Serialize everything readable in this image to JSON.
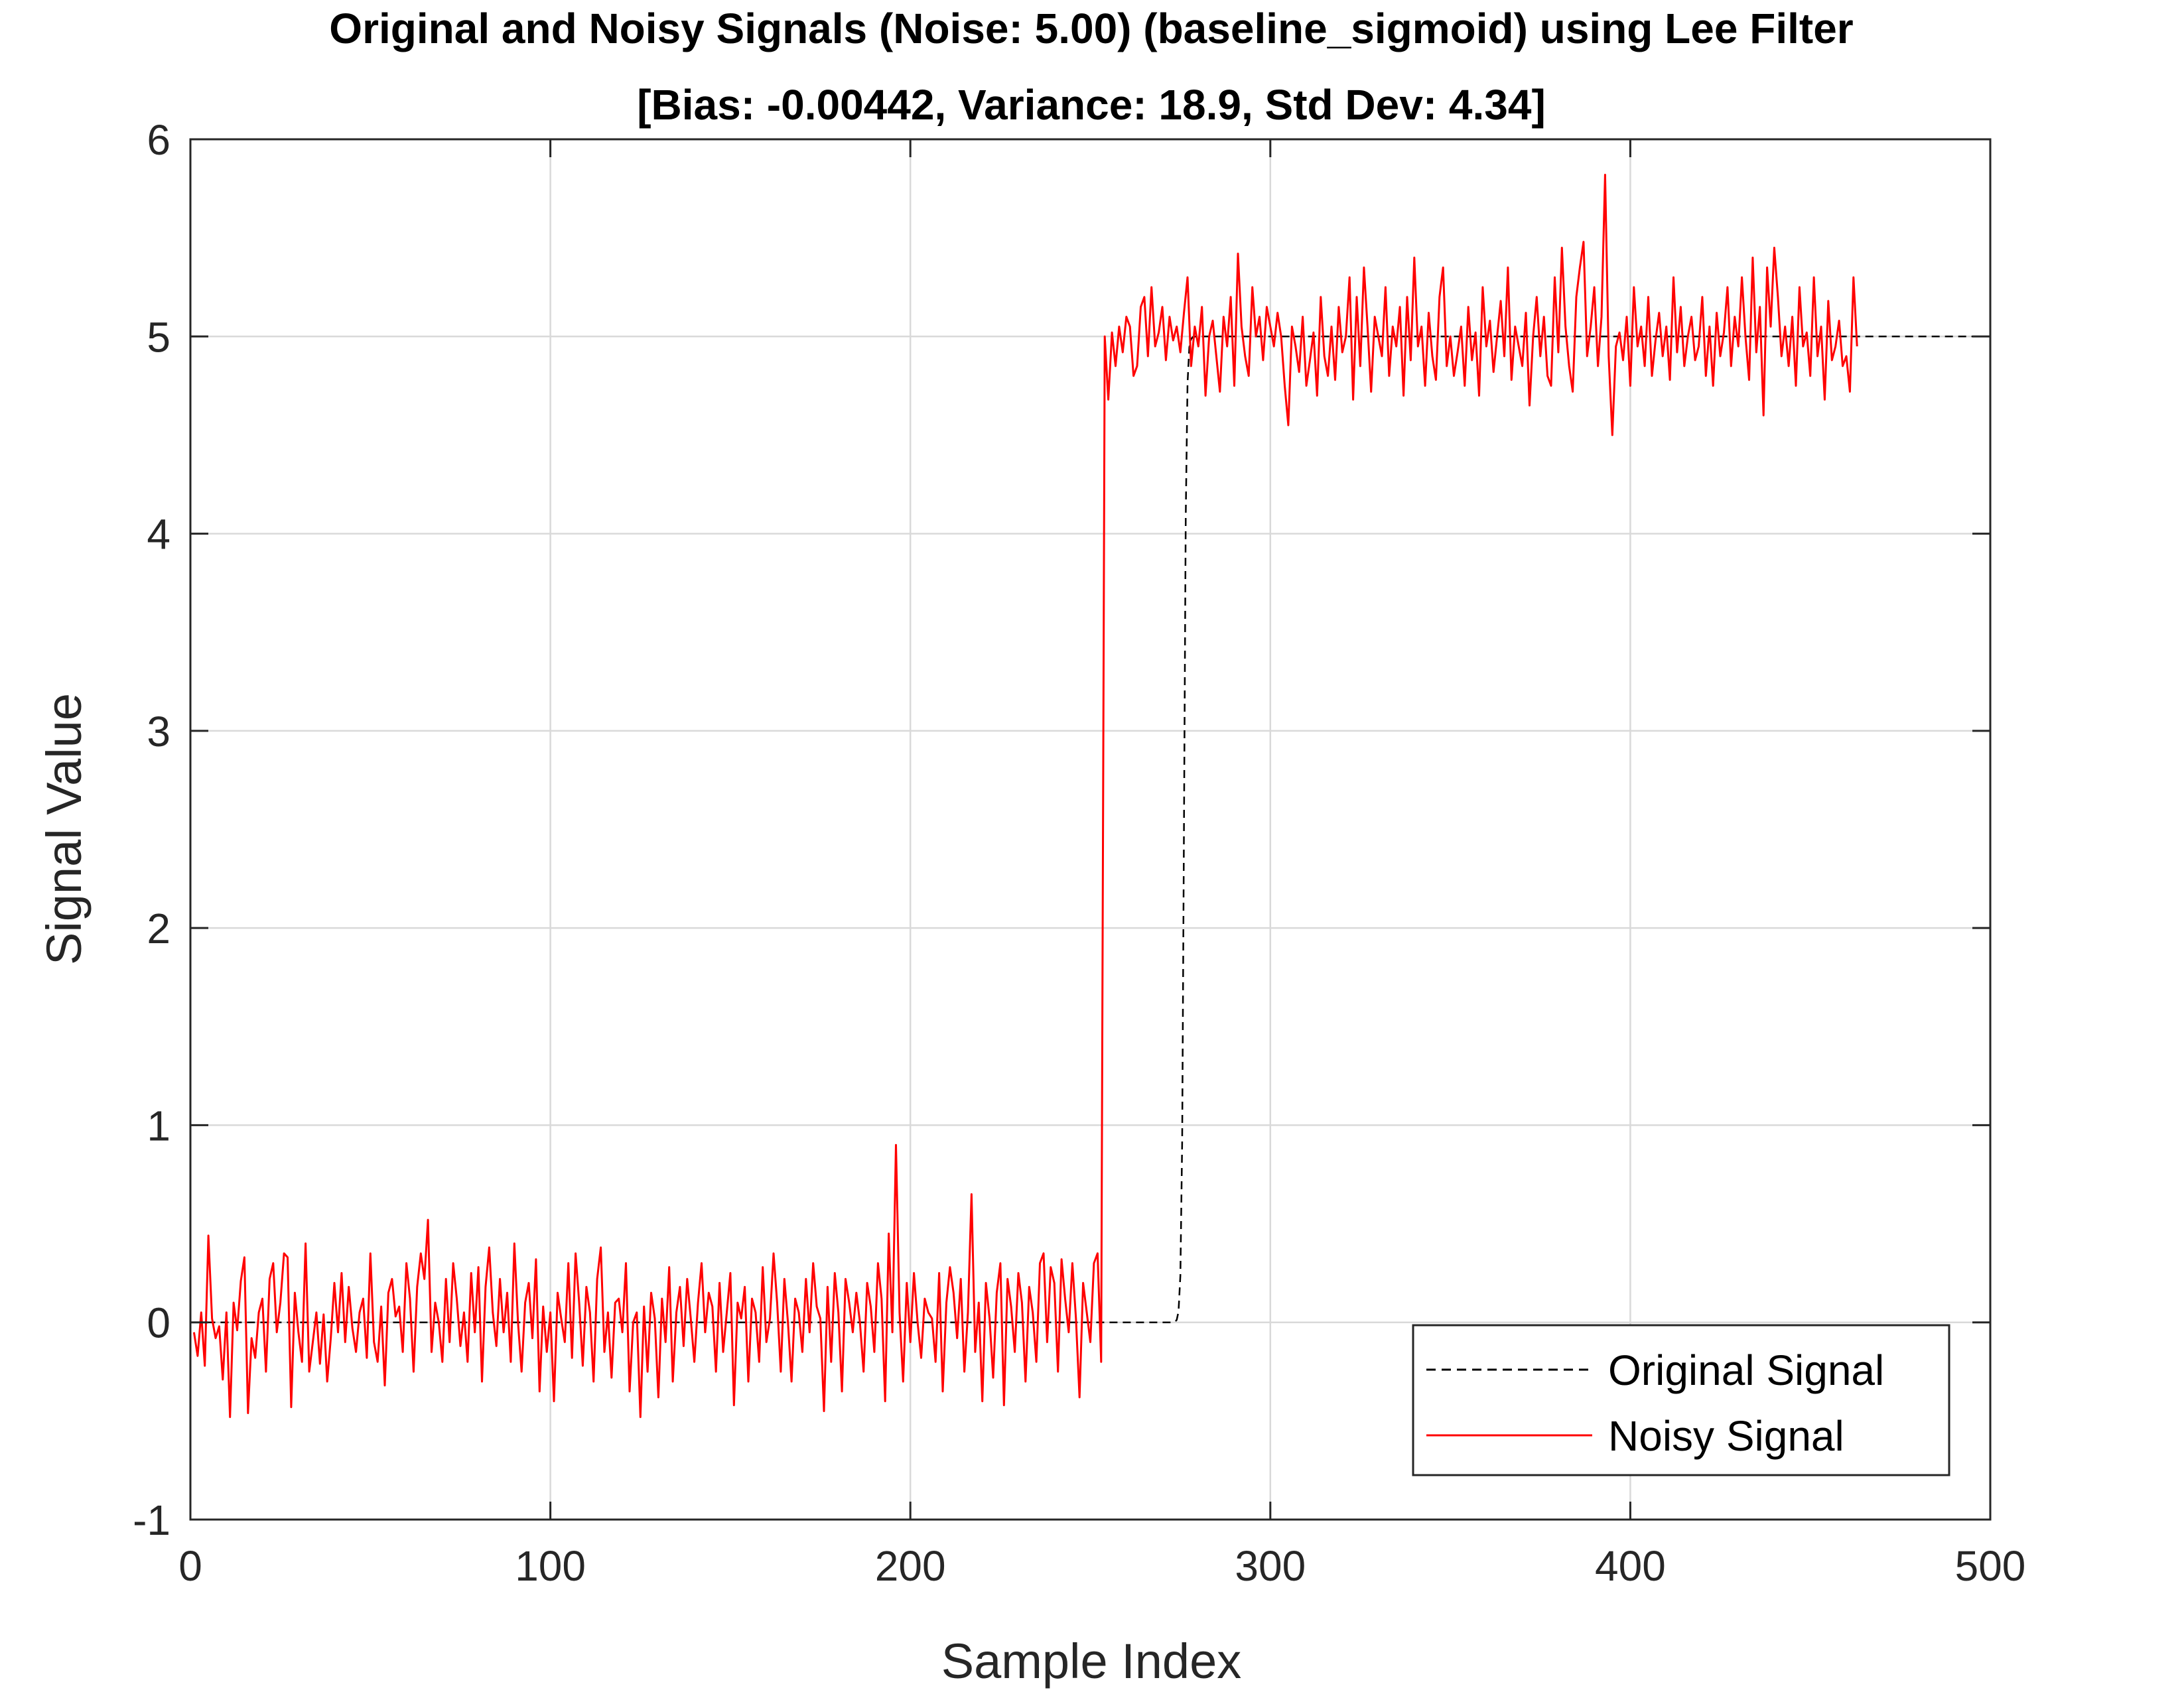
{
  "chart_data": {
    "type": "line",
    "title": "Original and Noisy Signals (Noise: 5.00) (baseline_sigmoid) using Lee Filter",
    "subtitle": "[Bias: -0.00442, Variance: 18.9, Std Dev: 4.34]",
    "xlabel": "Sample Index",
    "ylabel": "Signal Value",
    "xlim": [
      0,
      500
    ],
    "ylim": [
      -1,
      6
    ],
    "xticks": [
      0,
      100,
      200,
      300,
      400,
      500
    ],
    "xtick_labels": [
      "0",
      "100",
      "200",
      "300",
      "400",
      "500"
    ],
    "yticks": [
      -1,
      0,
      1,
      2,
      3,
      4,
      5,
      6
    ],
    "ytick_labels": [
      "-1",
      "0",
      "1",
      "2",
      "3",
      "4",
      "5",
      "6"
    ],
    "grid": true,
    "legend_position": "bottom-right",
    "series": [
      {
        "name": "Original Signal",
        "color": "#000000",
        "style": "dashed",
        "model": "sigmoid",
        "low": 0,
        "high": 5,
        "midpoint": 276,
        "steepness": 3,
        "x_start": 1,
        "x_end": 500
      },
      {
        "name": "Noisy Signal",
        "color": "#ff0000",
        "style": "solid",
        "x_start": 1,
        "values": [
          -0.05,
          -0.17,
          0.05,
          -0.22,
          0.44,
          0.02,
          -0.08,
          -0.02,
          -0.29,
          0.05,
          -0.48,
          0.1,
          -0.04,
          0.21,
          0.33,
          -0.46,
          -0.08,
          -0.18,
          0.05,
          0.12,
          -0.25,
          0.22,
          0.3,
          -0.05,
          0.1,
          0.35,
          0.33,
          -0.43,
          0.15,
          -0.05,
          -0.2,
          0.4,
          -0.25,
          -0.1,
          0.05,
          -0.21,
          0.04,
          -0.3,
          -0.08,
          0.2,
          -0.05,
          0.25,
          -0.1,
          0.18,
          -0.03,
          -0.15,
          0.05,
          0.12,
          -0.18,
          0.35,
          -0.1,
          -0.2,
          0.08,
          -0.32,
          0.15,
          0.22,
          0.03,
          0.08,
          -0.15,
          0.3,
          0.12,
          -0.25,
          0.18,
          0.35,
          0.22,
          0.52,
          -0.15,
          0.1,
          0.0,
          -0.2,
          0.22,
          -0.1,
          0.3,
          0.12,
          -0.12,
          0.05,
          -0.2,
          0.25,
          -0.05,
          0.28,
          -0.3,
          0.18,
          0.38,
          0.05,
          -0.12,
          0.22,
          -0.05,
          0.15,
          -0.2,
          0.4,
          0.0,
          -0.25,
          0.1,
          0.2,
          -0.08,
          0.32,
          -0.35,
          0.08,
          -0.15,
          0.05,
          -0.4,
          0.15,
          0.02,
          -0.1,
          0.3,
          -0.18,
          0.35,
          0.1,
          -0.22,
          0.18,
          0.05,
          -0.3,
          0.22,
          0.38,
          -0.15,
          0.05,
          -0.28,
          0.1,
          0.12,
          -0.05,
          0.3,
          -0.35,
          0.0,
          0.05,
          -0.48,
          0.08,
          -0.25,
          0.15,
          0.02,
          -0.38,
          0.12,
          -0.1,
          0.28,
          -0.3,
          0.05,
          0.18,
          -0.12,
          0.22,
          0.02,
          -0.2,
          0.1,
          0.3,
          -0.05,
          0.15,
          0.08,
          -0.25,
          0.2,
          -0.15,
          0.05,
          0.25,
          -0.42,
          0.1,
          0.02,
          0.18,
          -0.3,
          0.12,
          0.05,
          -0.2,
          0.28,
          -0.1,
          0.02,
          0.35,
          0.1,
          -0.25,
          0.22,
          0.0,
          -0.3,
          0.12,
          0.05,
          -0.15,
          0.22,
          -0.05,
          0.3,
          0.08,
          0.02,
          -0.45,
          0.18,
          -0.2,
          0.25,
          0.05,
          -0.35,
          0.22,
          0.1,
          -0.05,
          0.15,
          0.0,
          -0.25,
          0.2,
          0.08,
          -0.15,
          0.3,
          0.12,
          -0.4,
          0.45,
          -0.05,
          0.9,
          0.05,
          -0.3,
          0.2,
          -0.1,
          0.25,
          0.0,
          -0.18,
          0.12,
          0.05,
          0.02,
          -0.2,
          0.25,
          -0.35,
          0.1,
          0.28,
          0.15,
          -0.08,
          0.22,
          -0.25,
          0.05,
          0.65,
          -0.15,
          0.1,
          -0.4,
          0.2,
          0.02,
          -0.28,
          0.15,
          0.3,
          -0.42,
          0.22,
          0.08,
          -0.15,
          0.25,
          0.1,
          -0.3,
          0.18,
          0.05,
          -0.2,
          0.3,
          0.35,
          -0.1,
          0.28,
          0.2,
          -0.25,
          0.32,
          0.12,
          -0.05,
          0.3,
          0.02,
          -0.38,
          0.2,
          0.05,
          -0.1,
          0.3,
          0.35,
          -0.2,
          5.0,
          4.68,
          5.02,
          4.85,
          5.05,
          4.92,
          5.1,
          5.05,
          4.8,
          4.85,
          5.15,
          5.2,
          4.9,
          5.25,
          4.95,
          5.02,
          5.15,
          4.88,
          5.1,
          4.98,
          5.05,
          4.92,
          5.12,
          5.3,
          4.85,
          5.05,
          4.95,
          5.15,
          4.7,
          5.0,
          5.08,
          4.9,
          4.72,
          5.1,
          4.95,
          5.2,
          4.75,
          5.42,
          5.05,
          4.9,
          4.8,
          5.25,
          5.0,
          5.1,
          4.88,
          5.15,
          5.05,
          4.95,
          5.12,
          5.0,
          4.75,
          4.55,
          5.05,
          4.95,
          4.82,
          5.1,
          4.75,
          4.88,
          5.02,
          4.7,
          5.2,
          4.9,
          4.8,
          5.05,
          4.78,
          5.15,
          4.92,
          5.0,
          5.3,
          4.68,
          5.2,
          4.85,
          5.35,
          5.05,
          4.72,
          5.1,
          5.0,
          4.9,
          5.25,
          4.8,
          5.05,
          4.95,
          5.15,
          4.7,
          5.2,
          4.88,
          5.4,
          4.95,
          5.05,
          4.75,
          5.12,
          4.9,
          4.78,
          5.2,
          5.35,
          4.85,
          5.0,
          4.8,
          4.92,
          5.05,
          4.75,
          5.15,
          4.88,
          5.02,
          4.7,
          5.25,
          4.95,
          5.08,
          4.82,
          5.0,
          5.18,
          4.9,
          5.35,
          4.78,
          5.05,
          4.95,
          4.85,
          5.12,
          4.65,
          5.0,
          5.2,
          4.9,
          5.1,
          4.8,
          4.75,
          5.3,
          4.92,
          5.45,
          5.05,
          4.85,
          4.72,
          5.2,
          5.35,
          5.48,
          4.9,
          5.05,
          5.25,
          4.85,
          5.1,
          5.82,
          4.9,
          4.5,
          4.95,
          5.02,
          4.88,
          5.1,
          4.75,
          5.25,
          4.95,
          5.05,
          4.85,
          5.2,
          4.8,
          4.98,
          5.12,
          4.9,
          5.05,
          4.78,
          5.3,
          4.92,
          5.15,
          4.85,
          5.0,
          5.1,
          4.88,
          4.95,
          5.2,
          4.8,
          5.05,
          4.75,
          5.12,
          4.9,
          5.02,
          5.25,
          4.85,
          5.1,
          4.95,
          5.3,
          5.0,
          4.78,
          5.4,
          4.92,
          5.15,
          4.6,
          5.35,
          5.05,
          5.45,
          5.2,
          4.9,
          5.05,
          4.85,
          5.1,
          4.75,
          5.25,
          4.95,
          5.02,
          4.8,
          5.3,
          4.9,
          5.05,
          4.68,
          5.18,
          4.88,
          4.95,
          5.08,
          4.85,
          4.9,
          4.72,
          5.3,
          4.95
        ]
      }
    ]
  }
}
